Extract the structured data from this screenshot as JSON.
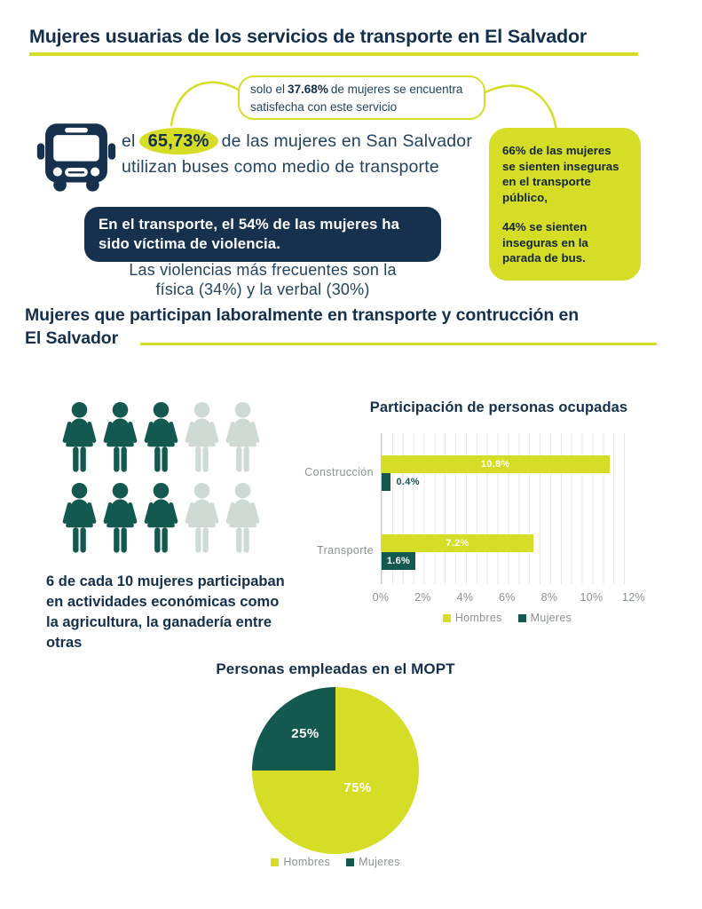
{
  "palette": {
    "navy": "#14304c",
    "body_navy": "#24435e",
    "yellow_green": "#d5dd26",
    "teal": "#14594f",
    "light_teal": "#cfdad4",
    "gray_text": "#8c9292"
  },
  "header": {
    "title": "Mujeres usuarias de los servicios de transporte en El Salvador"
  },
  "satisfaction_bubble": {
    "prefix": "solo el",
    "stat": "37.68%",
    "suffix": "de mujeres se encuentra",
    "line2": "satisfecha con este servicio"
  },
  "bus_stat": {
    "prefix": "el",
    "stat": "65,73%",
    "suffix": "de las mujeres en San Salvador",
    "line2": "utilizan buses como medio de transporte"
  },
  "violence_box": {
    "text": "En el transporte, el 54% de las mujeres ha\nsido víctima de violencia."
  },
  "violence_detail": {
    "text": "Las violencias más frecuentes son la\nfísica (34%) y la verbal (30%)"
  },
  "insecurity_box": {
    "para1": "66% de las mujeres\nse sienten inseguras\nen el transporte\npúblico,",
    "para2": "44% se sienten\ninseguras en la\nparada de bus."
  },
  "section2": {
    "title": "Mujeres que participan laboralmente en transporte y contrucción en\nEl Salvador",
    "pictogram": {
      "total": 10,
      "highlighted": 6,
      "rows": 2,
      "icon": "woman-figure"
    },
    "caption": "6 de cada 10 mujeres participaban\nen actividades económicas como\nla agricultura, la ganadería entre\notras"
  },
  "chart_data": [
    {
      "type": "bar",
      "orientation": "horizontal",
      "title": "Participación de personas ocupadas",
      "categories": [
        "Construcción",
        "Transporte"
      ],
      "series": [
        {
          "name": "Hombres",
          "color": "#d5dd26",
          "values": [
            10.8,
            7.2
          ],
          "labels": [
            "10.8%",
            "7.2%"
          ]
        },
        {
          "name": "Mujeres",
          "color": "#14594f",
          "values": [
            0.4,
            1.6
          ],
          "labels": [
            "0.4%",
            "1.6%"
          ]
        }
      ],
      "xlim": [
        0,
        12
      ],
      "xticks": [
        0,
        2,
        4,
        6,
        8,
        10,
        12
      ],
      "xtick_labels": [
        "0%",
        "2%",
        "4%",
        "6%",
        "8%",
        "10%",
        "12%"
      ],
      "grid": true,
      "minor_grid_step": 0.5,
      "legend_position": "bottom"
    },
    {
      "type": "pie",
      "title": "Personas empleadas en el MOPT",
      "labels": [
        "Hombres",
        "Mujeres"
      ],
      "values": [
        75,
        25
      ],
      "value_labels": [
        "75%",
        "25%"
      ],
      "colors": [
        "#d5dd26",
        "#14594f"
      ],
      "start_angle_deg": 0,
      "legend_position": "bottom"
    }
  ]
}
